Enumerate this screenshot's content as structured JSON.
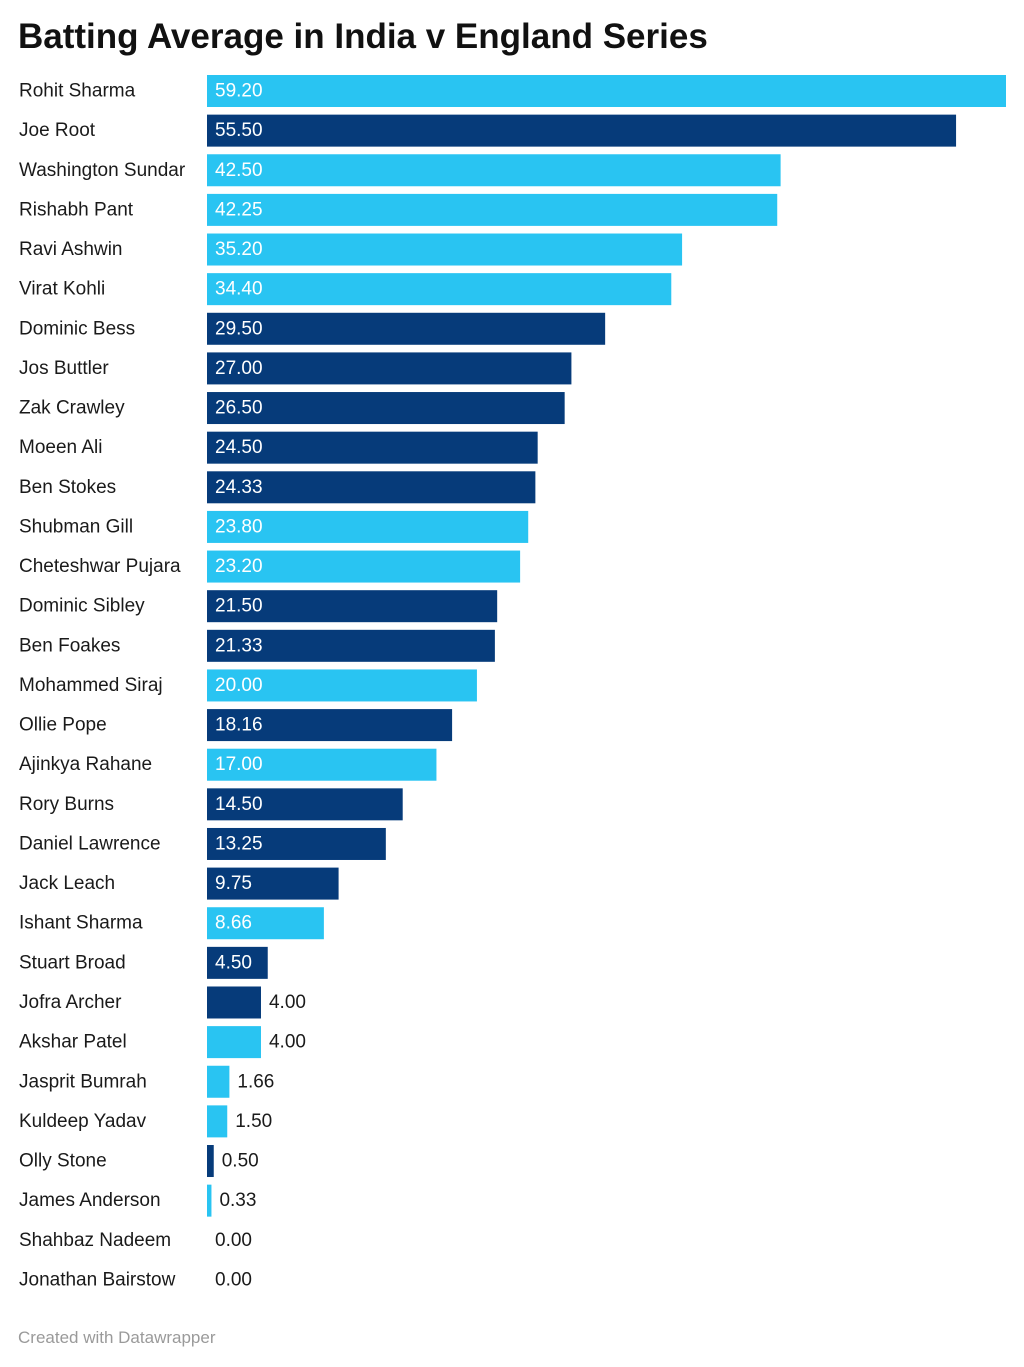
{
  "chart_data": {
    "type": "bar",
    "orientation": "horizontal",
    "title": "Batting Average in India v England Series",
    "xlabel": "",
    "ylabel": "",
    "xlim": [
      0,
      59.2
    ],
    "grid": false,
    "legend": "none",
    "colors": {
      "light": "#29c4f2",
      "dark": "#063b7a"
    },
    "bars": [
      {
        "name": "Rohit Sharma",
        "value": 59.2,
        "label": "59.20",
        "color": "light"
      },
      {
        "name": "Joe Root",
        "value": 55.5,
        "label": "55.50",
        "color": "dark"
      },
      {
        "name": "Washington Sundar",
        "value": 42.5,
        "label": "42.50",
        "color": "light"
      },
      {
        "name": "Rishabh Pant",
        "value": 42.25,
        "label": "42.25",
        "color": "light"
      },
      {
        "name": "Ravi Ashwin",
        "value": 35.2,
        "label": "35.20",
        "color": "light"
      },
      {
        "name": "Virat Kohli",
        "value": 34.4,
        "label": "34.40",
        "color": "light"
      },
      {
        "name": "Dominic Bess",
        "value": 29.5,
        "label": "29.50",
        "color": "dark"
      },
      {
        "name": "Jos Buttler",
        "value": 27.0,
        "label": "27.00",
        "color": "dark"
      },
      {
        "name": "Zak Crawley",
        "value": 26.5,
        "label": "26.50",
        "color": "dark"
      },
      {
        "name": "Moeen Ali",
        "value": 24.5,
        "label": "24.50",
        "color": "dark"
      },
      {
        "name": "Ben Stokes",
        "value": 24.33,
        "label": "24.33",
        "color": "dark"
      },
      {
        "name": "Shubman Gill",
        "value": 23.8,
        "label": "23.80",
        "color": "light"
      },
      {
        "name": "Cheteshwar Pujara",
        "value": 23.2,
        "label": "23.20",
        "color": "light"
      },
      {
        "name": "Dominic Sibley",
        "value": 21.5,
        "label": "21.50",
        "color": "dark"
      },
      {
        "name": "Ben Foakes",
        "value": 21.33,
        "label": "21.33",
        "color": "dark"
      },
      {
        "name": "Mohammed Siraj",
        "value": 20.0,
        "label": "20.00",
        "color": "light"
      },
      {
        "name": "Ollie Pope",
        "value": 18.16,
        "label": "18.16",
        "color": "dark"
      },
      {
        "name": "Ajinkya Rahane",
        "value": 17.0,
        "label": "17.00",
        "color": "light"
      },
      {
        "name": "Rory Burns",
        "value": 14.5,
        "label": "14.50",
        "color": "dark"
      },
      {
        "name": "Daniel Lawrence",
        "value": 13.25,
        "label": "13.25",
        "color": "dark"
      },
      {
        "name": "Jack Leach",
        "value": 9.75,
        "label": "9.75",
        "color": "dark"
      },
      {
        "name": "Ishant Sharma",
        "value": 8.66,
        "label": "8.66",
        "color": "light"
      },
      {
        "name": "Stuart Broad",
        "value": 4.5,
        "label": "4.50",
        "color": "dark"
      },
      {
        "name": "Jofra Archer",
        "value": 4.0,
        "label": "4.00",
        "color": "dark"
      },
      {
        "name": "Akshar Patel",
        "value": 4.0,
        "label": "4.00",
        "color": "light"
      },
      {
        "name": "Jasprit Bumrah",
        "value": 1.66,
        "label": "1.66",
        "color": "light"
      },
      {
        "name": "Kuldeep Yadav",
        "value": 1.5,
        "label": "1.50",
        "color": "light"
      },
      {
        "name": "Olly Stone",
        "value": 0.5,
        "label": "0.50",
        "color": "dark"
      },
      {
        "name": "James Anderson",
        "value": 0.33,
        "label": "0.33",
        "color": "light"
      },
      {
        "name": "Shahbaz Nadeem",
        "value": 0.0,
        "label": "0.00",
        "color": "light"
      },
      {
        "name": "Jonathan Bairstow",
        "value": 0.0,
        "label": "0.00",
        "color": "dark"
      }
    ]
  },
  "footer": "Created with Datawrapper"
}
